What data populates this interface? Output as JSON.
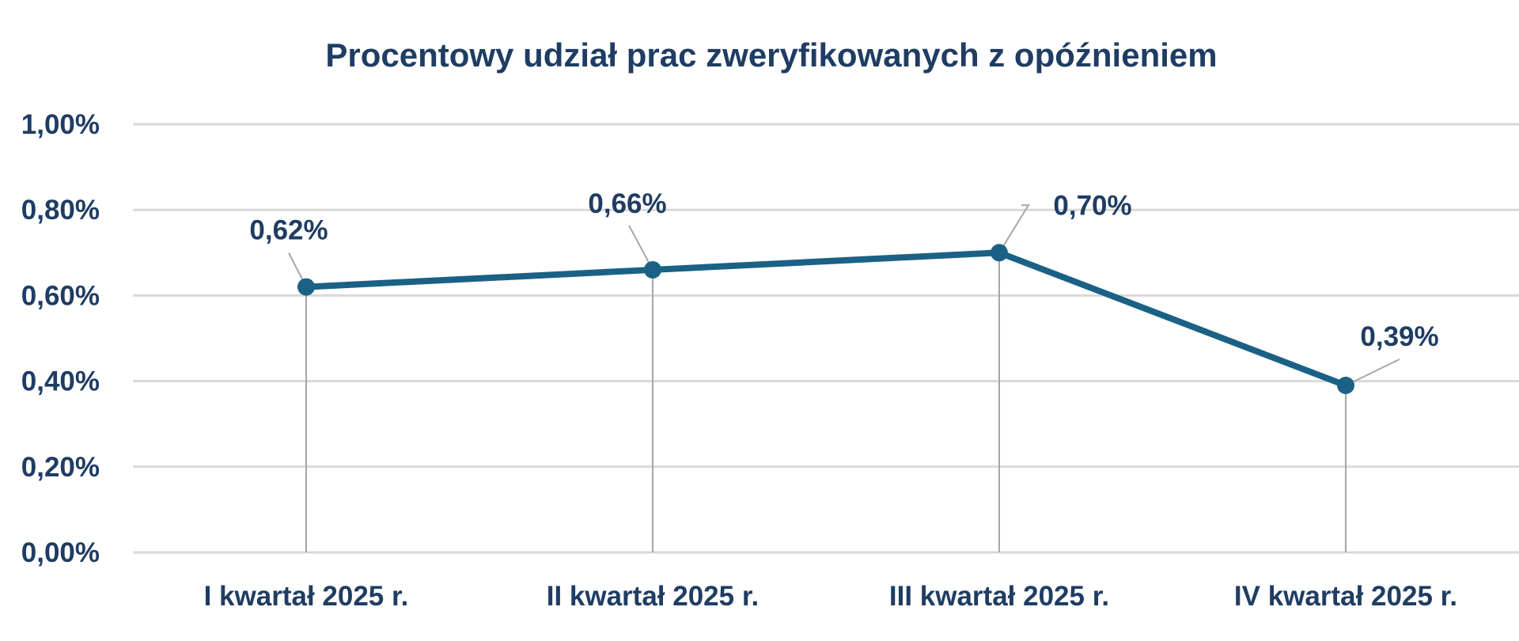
{
  "chart_data": {
    "type": "line",
    "title": "Procentowy udział prac zweryfikowanych z opóźnieniem",
    "xlabel": "",
    "ylabel": "",
    "categories": [
      "I kwartał 2025 r.",
      "II kwartał 2025 r.",
      "III kwartał 2025 r.",
      "IV kwartał 2025 r."
    ],
    "series": [
      {
        "values": [
          0.62,
          0.66,
          0.7,
          0.39
        ],
        "labels": [
          "0,62%",
          "0,66%",
          "0,70%",
          "0,39%"
        ]
      }
    ],
    "ylim": [
      0,
      1.0
    ],
    "yticks": [
      0,
      0.2,
      0.4,
      0.6,
      0.8,
      1.0
    ],
    "ytick_labels": [
      "0,00%",
      "0,20%",
      "0,40%",
      "0,60%",
      "0,80%",
      "1,00%"
    ],
    "grid": true,
    "drop_lines": true,
    "legend": "none",
    "colors": {
      "line": "#1a6185",
      "text": "#1f3d63",
      "grid": "#d9d9d9",
      "leader": "#a6a6a6"
    }
  }
}
